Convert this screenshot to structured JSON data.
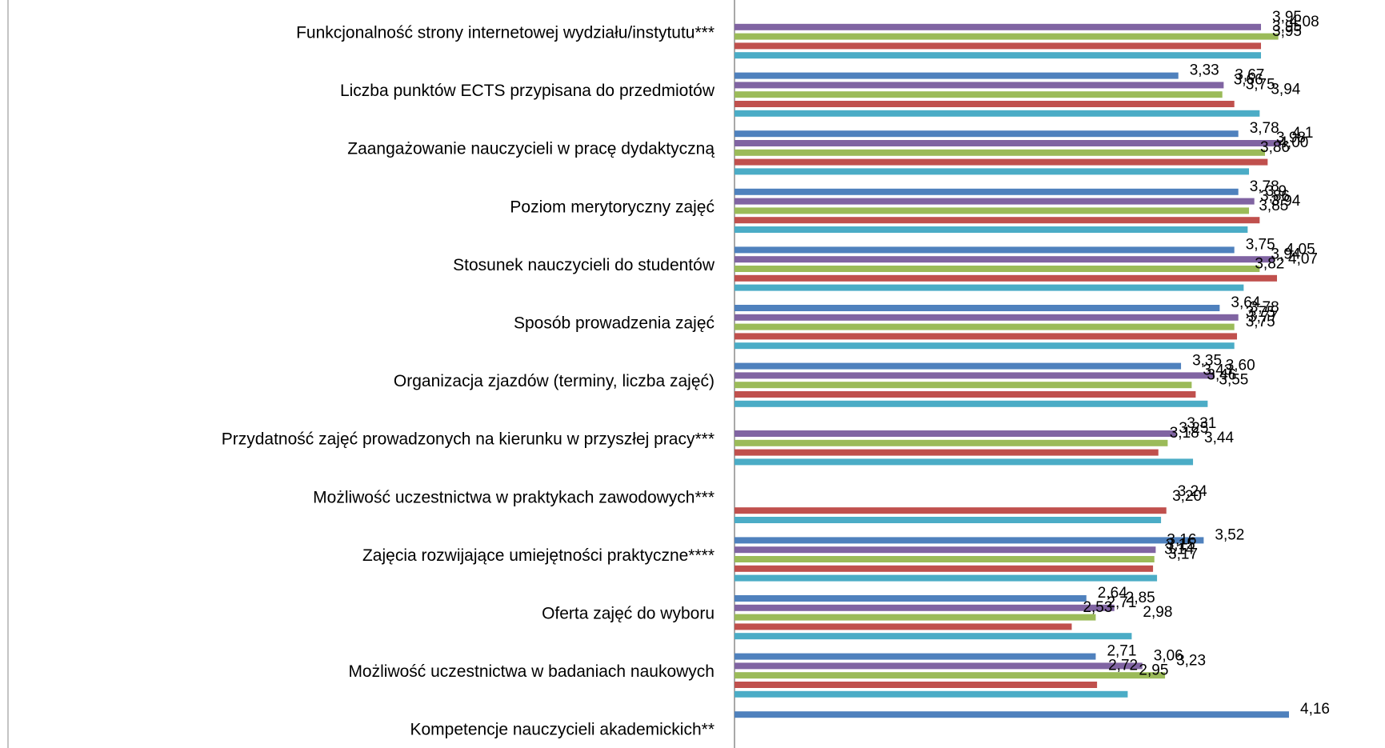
{
  "chart_data": {
    "type": "bar",
    "orientation": "horizontal",
    "grid": false,
    "legend": "none",
    "categories": [
      "Funkcjonalność strony internetowej wydziału/instytutu***",
      "Liczba punktów ECTS przypisana do przedmiotów",
      "Zaangażowanie nauczycieli w pracę dydaktyczną",
      "Poziom merytoryczny zajęć",
      "Stosunek nauczycieli do studentów",
      "Sposób prowadzenia zajęć",
      "Organizacja zjazdów (terminy, liczba zajęć)",
      "Przydatność zajęć prowadzonych na kierunku w przyszłej pracy***",
      "Możliwość uczestnictwa w praktykach zawodowych***",
      "Zajęcia rozwijające umiejętności praktyczne****",
      "Oferta zajęć do wyboru",
      "Możliwość uczestnictwa w badaniach naukowych",
      "Kompetencje nauczycieli akademickich**"
    ],
    "series": [
      {
        "color": "#4F81BD",
        "values": [
          null,
          3.33,
          3.78,
          3.78,
          3.75,
          3.64,
          3.35,
          null,
          null,
          3.52,
          2.64,
          2.71,
          4.16
        ],
        "labels": [
          "",
          "3,33",
          "3,78",
          "3,78",
          "3,75",
          "3,64",
          "3,35",
          "",
          "",
          "3,52",
          "2,64",
          "2,71",
          "4,16"
        ]
      },
      {
        "color": "#8064A2",
        "values": [
          3.95,
          3.67,
          4.1,
          3.9,
          4.05,
          3.78,
          3.6,
          3.31,
          null,
          3.16,
          2.85,
          3.06,
          null
        ],
        "labels": [
          "3,95",
          "3,67",
          "4,1",
          "3,9",
          "4,05",
          "3,78",
          "3,60",
          "3,31",
          "",
          "3,16",
          "2,85",
          "3,06",
          ""
        ]
      },
      {
        "color": "#9BBB59",
        "values": [
          4.08,
          3.66,
          3.98,
          3.86,
          3.94,
          3.75,
          3.43,
          3.25,
          null,
          3.15,
          2.71,
          3.23,
          null
        ],
        "labels": [
          "4,08",
          "3,66",
          "3,98",
          "3,86",
          "3,94",
          "3,75",
          "3,43",
          "3,25",
          "",
          "3,15",
          "2,71",
          "3,23",
          ""
        ]
      },
      {
        "color": "#C0504D",
        "values": [
          3.95,
          3.75,
          4.0,
          3.94,
          4.07,
          3.77,
          3.46,
          3.18,
          3.24,
          3.14,
          2.53,
          2.72,
          null
        ],
        "labels": [
          "3,95",
          "3,75",
          "4,00",
          "3,94",
          "4,07",
          "3,77",
          "3,46",
          "3,18",
          "3,24",
          "3,14",
          "2,53",
          "2,72",
          ""
        ]
      },
      {
        "color": "#4BACC6",
        "values": [
          3.95,
          3.94,
          3.86,
          3.85,
          3.82,
          3.75,
          3.55,
          3.44,
          3.2,
          3.17,
          2.98,
          2.95,
          null
        ],
        "labels": [
          "3,95",
          "3,94",
          "3,86",
          "3,85",
          "3,82",
          "3,75",
          "3,55",
          "3,44",
          "3,20",
          "3,17",
          "2,98",
          "2,95",
          ""
        ]
      }
    ],
    "xlim": [
      0,
      4.16
    ]
  }
}
